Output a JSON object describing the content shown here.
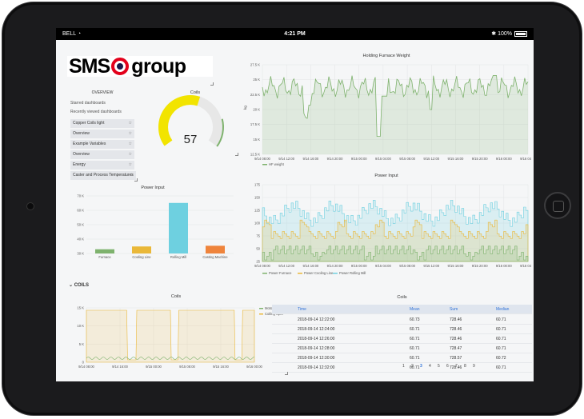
{
  "status_bar": {
    "carrier": "BELL",
    "time": "4:21 PM",
    "battery": "100%"
  },
  "logo": {
    "left": "SMS",
    "right": "group"
  },
  "overview": {
    "title": "OVERVIEW",
    "starred": "Starred dashboards",
    "recent": "Recently viewed dashboards",
    "items": [
      "Copper Coils light",
      "Overview",
      "Example Variables",
      "Overview",
      "Energy",
      "Caster and Process Temperatures"
    ]
  },
  "gauge": {
    "title": "Coils",
    "value": "57",
    "fraction": 0.57,
    "color": "#f2e400"
  },
  "weight_chart": {
    "title": "Holding Furnace Weight",
    "ylabel": "kg",
    "yticks": [
      "27.5 K",
      "25 K",
      "22.5 K",
      "20 K",
      "17.5 K",
      "15 K",
      "12.5 K"
    ],
    "xticks": [
      "9/14 08:00",
      "9/14 12:00",
      "9/14 16:00",
      "9/14 20:00",
      "9/15 00:00",
      "9/15 04:00",
      "9/15 08:00",
      "9/15 12:00",
      "9/15 16:00",
      "9/15 20:00",
      "9/16 00:00",
      "9/16 04:00"
    ],
    "legend": [
      "HF weight"
    ]
  },
  "power_bar": {
    "title": "Power Input",
    "yticks": [
      "70 K",
      "60 K",
      "50 K",
      "40 K",
      "30 K"
    ],
    "categories": [
      "Furnace",
      "Cooling Line",
      "Rolling Mill",
      "Casting Machine"
    ],
    "values": [
      32000,
      34000,
      65000,
      34500
    ],
    "colors": [
      "#7eb26d",
      "#eab839",
      "#6ed0e0",
      "#ef843c"
    ],
    "ylim": [
      29000,
      70000
    ]
  },
  "power_chart": {
    "title": "Power Input",
    "yticks": [
      "175",
      "150",
      "125",
      "100",
      "75",
      "50",
      "25"
    ],
    "xticks": [
      "9/14 08:00",
      "9/14 12:00",
      "9/14 16:00",
      "9/14 20:00",
      "9/15 00:00",
      "9/15 04:00",
      "9/15 08:00",
      "9/15 12:00",
      "9/15 16:00",
      "9/15 20:00",
      "9/16 00:00",
      "9/16 04:00"
    ],
    "legend": [
      "Power Furnace",
      "Power Cooling Line",
      "Power Rolling Mill"
    ]
  },
  "section": {
    "label": "COILS"
  },
  "coils_chart": {
    "title": "Coils",
    "yticks": [
      "15 K",
      "10 K",
      "5 K",
      "0"
    ],
    "xticks": [
      "9/14 08:00",
      "9/14 16:00",
      "9/15 00:00",
      "9/15 08:00",
      "9/15 16:00",
      "9/16 00:00"
    ],
    "legend": [
      "Motor Speed",
      "Coiling Speed"
    ]
  },
  "coils_table": {
    "title": "Coils",
    "headers": [
      "Time",
      "Mean",
      "Sum",
      "Median"
    ],
    "rows": [
      [
        "2018-09-14 12:22:00",
        "60.73",
        "728.46",
        "60.71"
      ],
      [
        "2018-09-14 12:24:00",
        "60.71",
        "728.46",
        "60.71"
      ],
      [
        "2018-09-14 12:26:00",
        "60.71",
        "728.46",
        "60.71"
      ],
      [
        "2018-09-14 12:28:00",
        "60.71",
        "728.47",
        "60.71"
      ],
      [
        "2018-09-14 12:30:00",
        "60.71",
        "728.57",
        "60.72"
      ],
      [
        "2018-09-14 12:32:00",
        "60.71",
        "728.46",
        "60.71"
      ]
    ],
    "pages": [
      "1",
      "2",
      "3",
      "4",
      "5",
      "6",
      "7",
      "8",
      "9"
    ],
    "active_page": "3"
  }
}
